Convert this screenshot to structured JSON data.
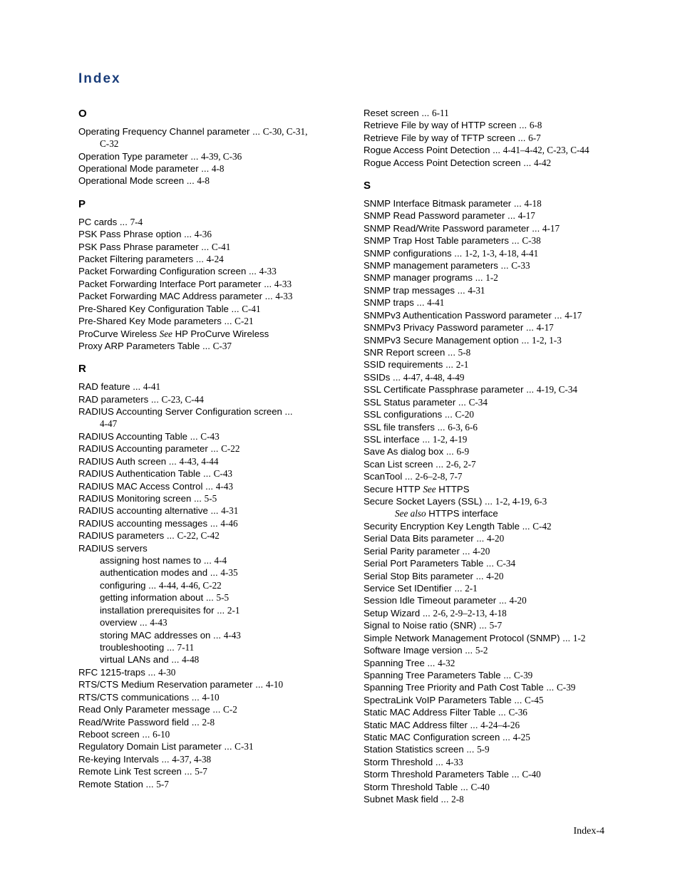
{
  "title": "Index",
  "footer": "Index-4",
  "left": {
    "sectionO": {
      "head": "O",
      "items": [
        {
          "t": "Operating Frequency Channel parameter ... ",
          "r": "C-30, C-31,"
        },
        {
          "t": "",
          "r": "C-32",
          "cls": "sub"
        },
        {
          "t": "Operation Type parameter ... ",
          "r": "4-39, C-36"
        },
        {
          "t": "Operational Mode parameter ... ",
          "r": "4-8"
        },
        {
          "t": "Operational Mode screen ... ",
          "r": "4-8"
        }
      ]
    },
    "sectionP": {
      "head": "P",
      "items": [
        {
          "t": "PC cards ... ",
          "r": "7-4"
        },
        {
          "t": "PSK Pass Phrase option ... ",
          "r": "4-36"
        },
        {
          "t": "PSK Pass Phrase parameter ... ",
          "r": "C-41"
        },
        {
          "t": "Packet Filtering parameters ... ",
          "r": "4-24"
        },
        {
          "t": "Packet Forwarding Configuration screen ... ",
          "r": "4-33"
        },
        {
          "t": "Packet Forwarding Interface Port parameter ... ",
          "r": "4-33"
        },
        {
          "t": "Packet Forwarding MAC Address parameter ... ",
          "r": "4-33"
        },
        {
          "t": "Pre-Shared Key Configuration Table ... ",
          "r": "C-41"
        },
        {
          "t": "Pre-Shared Key Mode parameters ... ",
          "r": "C-21"
        },
        {
          "t": "ProCurve Wireless ",
          "i": "See",
          "t2": " HP ProCurve Wireless"
        },
        {
          "t": "Proxy ARP Parameters Table ... ",
          "r": "C-37"
        }
      ]
    },
    "sectionR": {
      "head": "R",
      "items": [
        {
          "t": "RAD feature ... ",
          "r": "4-41"
        },
        {
          "t": "RAD parameters ... ",
          "r": "C-23, C-44"
        },
        {
          "t": "RADIUS Accounting Server Configuration screen ... "
        },
        {
          "t": "",
          "r": "4-47",
          "cls": "sub"
        },
        {
          "t": "RADIUS Accounting Table ... ",
          "r": "C-43"
        },
        {
          "t": "RADIUS Accounting parameter ... ",
          "r": "C-22"
        },
        {
          "t": "RADIUS Auth screen ... ",
          "r": "4-43, 4-44"
        },
        {
          "t": "RADIUS Authentication Table ... ",
          "r": "C-43"
        },
        {
          "t": "RADIUS MAC Access Control ... ",
          "r": "4-43"
        },
        {
          "t": "RADIUS Monitoring screen ... ",
          "r": "5-5"
        },
        {
          "t": "RADIUS accounting alternative ... ",
          "r": "4-31"
        },
        {
          "t": "RADIUS accounting messages ... ",
          "r": "4-46"
        },
        {
          "t": "RADIUS parameters ... ",
          "r": "C-22, C-42"
        },
        {
          "t": "RADIUS servers"
        },
        {
          "t": "assigning host names to ... ",
          "r": "4-4",
          "cls": "sub"
        },
        {
          "t": "authentication modes and ... ",
          "r": "4-35",
          "cls": "sub"
        },
        {
          "t": "configuring ... ",
          "r": "4-44, 4-46, C-22",
          "cls": "sub"
        },
        {
          "t": "getting information about ... ",
          "r": "5-5",
          "cls": "sub"
        },
        {
          "t": "installation prerequisites for ... ",
          "r": "2-1",
          "cls": "sub"
        },
        {
          "t": "overview ... ",
          "r": "4-43",
          "cls": "sub"
        },
        {
          "t": "storing MAC addresses on ... ",
          "r": "4-43",
          "cls": "sub"
        },
        {
          "t": "troubleshooting ... ",
          "r": "7-11",
          "cls": "sub"
        },
        {
          "t": "virtual LANs and ... ",
          "r": "4-48",
          "cls": "sub"
        },
        {
          "t": "RFC 1215-traps ... ",
          "r": "4-30"
        },
        {
          "t": "RTS/CTS Medium Reservation parameter ... ",
          "r": "4-10"
        },
        {
          "t": "RTS/CTS communications ... ",
          "r": "4-10"
        },
        {
          "t": "Read Only Parameter message ... ",
          "r": "C-2"
        },
        {
          "t": "Read/Write Password field ... ",
          "r": "2-8"
        },
        {
          "t": "Reboot screen ... ",
          "r": "6-10"
        },
        {
          "t": "Regulatory Domain List parameter ... ",
          "r": "C-31"
        },
        {
          "t": "Re-keying Intervals ... ",
          "r": "4-37, 4-38"
        },
        {
          "t": "Remote Link Test screen ... ",
          "r": "5-7"
        },
        {
          "t": "Remote Station ... ",
          "r": "5-7"
        }
      ]
    }
  },
  "right": {
    "top": [
      {
        "t": "Reset screen ... ",
        "r": "6-11"
      },
      {
        "t": "Retrieve File by way of HTTP screen ... ",
        "r": "6-8"
      },
      {
        "t": "Retrieve File by way of TFTP screen ... ",
        "r": "6-7"
      },
      {
        "t": "Rogue Access Point Detection ... ",
        "r": "4-41–4-42, C-23, C-44"
      },
      {
        "t": "Rogue Access Point Detection screen ... ",
        "r": "4-42"
      }
    ],
    "sectionS": {
      "head": "S",
      "items": [
        {
          "t": "SNMP Interface Bitmask parameter ... ",
          "r": "4-18"
        },
        {
          "t": "SNMP Read Password parameter ... ",
          "r": "4-17"
        },
        {
          "t": "SNMP Read/Write Password parameter ... ",
          "r": "4-17"
        },
        {
          "t": "SNMP Trap Host Table parameters ... ",
          "r": "C-38"
        },
        {
          "t": "SNMP configurations ... ",
          "r": "1-2, 1-3, 4-18, 4-41"
        },
        {
          "t": "SNMP management parameters ... ",
          "r": "C-33"
        },
        {
          "t": "SNMP manager programs ... ",
          "r": "1-2"
        },
        {
          "t": "SNMP trap messages ... ",
          "r": "4-31"
        },
        {
          "t": "SNMP traps ... ",
          "r": "4-41"
        },
        {
          "t": "SNMPv3 Authentication Password parameter ... ",
          "r": "4-17"
        },
        {
          "t": "SNMPv3 Privacy Password parameter ... ",
          "r": "4-17"
        },
        {
          "t": "SNMPv3 Secure Management option ... ",
          "r": "1-2, 1-3"
        },
        {
          "t": "SNR Report screen ... ",
          "r": "5-8"
        },
        {
          "t": "SSID requirements ... ",
          "r": "2-1"
        },
        {
          "t": "SSIDs ... ",
          "r": "4-47, 4-48, 4-49"
        },
        {
          "t": "SSL Certificate Passphrase parameter ... ",
          "r": "4-19, C-34"
        },
        {
          "t": "SSL Status parameter ... ",
          "r": "C-34"
        },
        {
          "t": "SSL configurations ... ",
          "r": "C-20"
        },
        {
          "t": "SSL file transfers ... ",
          "r": "6-3, 6-6"
        },
        {
          "t": "SSL interface ... ",
          "r": "1-2, 4-19"
        },
        {
          "t": "Save As dialog box ... ",
          "r": "6-9"
        },
        {
          "t": "Scan List screen ... ",
          "r": "2-6, 2-7"
        },
        {
          "t": "ScanTool ... ",
          "r": "2-6–2-8, 7-7"
        },
        {
          "t": "Secure HTTP ",
          "i": "See",
          "t2": " HTTPS"
        },
        {
          "t": "Secure Socket Layers (SSL) ... ",
          "r": "1-2, 4-19, 6-3"
        },
        {
          "i": "See also",
          "t2": " HTTPS interface",
          "cls": "sub2"
        },
        {
          "t": "Security Encryption Key Length Table ... ",
          "r": "C-42"
        },
        {
          "t": "Serial Data Bits parameter ... ",
          "r": "4-20"
        },
        {
          "t": "Serial Parity parameter ... ",
          "r": "4-20"
        },
        {
          "t": "Serial Port Parameters Table ... ",
          "r": "C-34"
        },
        {
          "t": "Serial Stop Bits parameter ... ",
          "r": "4-20"
        },
        {
          "t": "Service Set IDentifier ... ",
          "r": "2-1"
        },
        {
          "t": "Session Idle Timeout parameter ... ",
          "r": "4-20"
        },
        {
          "t": "Setup Wizard ... ",
          "r": "2-6, 2-9–2-13, 4-18"
        },
        {
          "t": "Signal to Noise ratio (SNR) ... ",
          "r": "5-7"
        },
        {
          "t": "Simple Network Management Protocol (SNMP) ... ",
          "r": "1-2"
        },
        {
          "t": "Software Image version ... ",
          "r": "5-2"
        },
        {
          "t": "Spanning Tree ... ",
          "r": "4-32"
        },
        {
          "t": "Spanning Tree Parameters Table ... ",
          "r": "C-39"
        },
        {
          "t": "Spanning Tree Priority and Path Cost Table ... ",
          "r": "C-39"
        },
        {
          "t": "SpectraLink VoIP Parameters Table ... ",
          "r": "C-45"
        },
        {
          "t": "Static MAC Address Filter Table ... ",
          "r": "C-36"
        },
        {
          "t": "Static MAC Address filter ... ",
          "r": "4-24–4-26"
        },
        {
          "t": "Static MAC Configuration screen ... ",
          "r": "4-25"
        },
        {
          "t": "Station Statistics screen ... ",
          "r": "5-9"
        },
        {
          "t": "Storm Threshold ... ",
          "r": "4-33"
        },
        {
          "t": "Storm Threshold Parameters Table ... ",
          "r": "C-40"
        },
        {
          "t": "Storm Threshold Table ... ",
          "r": "C-40"
        },
        {
          "t": "Subnet Mask field ... ",
          "r": "2-8"
        }
      ]
    }
  }
}
